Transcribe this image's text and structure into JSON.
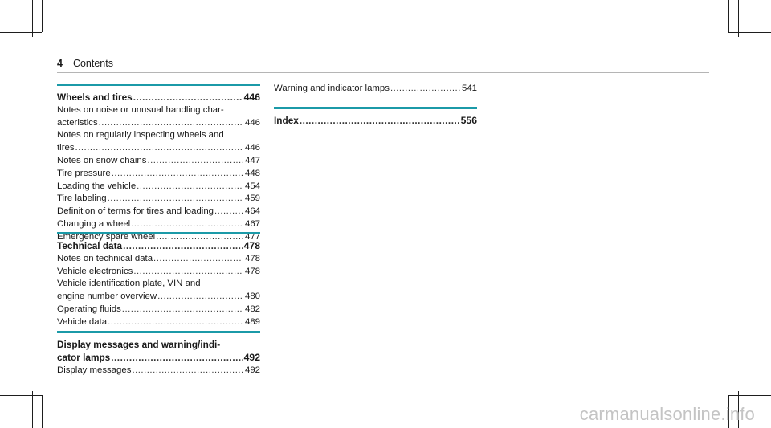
{
  "header": {
    "page_number": "4",
    "title": "Contents"
  },
  "sections": [
    {
      "id": "wheels",
      "heading": {
        "text": "Wheels and tires",
        "page": "446"
      },
      "entries": [
        {
          "lines": [
            "Notes on noise or unusual handling char-"
          ],
          "last": "acteristics",
          "page": "446"
        },
        {
          "lines": [
            "Notes on regularly inspecting wheels and"
          ],
          "last": "tires",
          "page": "446"
        },
        {
          "lines": [],
          "last": "Notes on snow chains",
          "page": "447"
        },
        {
          "lines": [],
          "last": "Tire pressure",
          "page": "448"
        },
        {
          "lines": [],
          "last": "Loading the vehicle",
          "page": "454"
        },
        {
          "lines": [],
          "last": "Tire labeling",
          "page": "459"
        },
        {
          "lines": [],
          "last": "Definition of terms for tires and loading",
          "page": "464"
        },
        {
          "lines": [],
          "last": "Changing a wheel",
          "page": "467"
        },
        {
          "lines": [],
          "last": "Emergency spare wheel",
          "page": "477"
        }
      ]
    },
    {
      "id": "technical",
      "heading": {
        "text": "Technical data",
        "page": "478"
      },
      "entries": [
        {
          "lines": [],
          "last": "Notes on technical data",
          "page": "478"
        },
        {
          "lines": [],
          "last": "Vehicle electronics",
          "page": "478"
        },
        {
          "lines": [
            "Vehicle identification plate, VIN and"
          ],
          "last": "engine number overview",
          "page": "480"
        },
        {
          "lines": [],
          "last": "Operating fluids",
          "page": "482"
        },
        {
          "lines": [],
          "last": "Vehicle data",
          "page": "489"
        }
      ]
    },
    {
      "id": "display",
      "heading_lines": [
        "Display messages and warning/indi-"
      ],
      "heading": {
        "text": "cator lamps",
        "page": "492"
      },
      "entries": [
        {
          "lines": [],
          "last": "Display messages",
          "page": "492"
        }
      ]
    }
  ],
  "right_column": {
    "top_entry": {
      "last": "Warning and indicator lamps",
      "page": "541"
    },
    "index": {
      "text": "Index",
      "page": "556"
    }
  },
  "watermark": "carmanualsonline.info",
  "colors": {
    "accent_bar": "#1b9aa8",
    "watermark": "#c4c4c4",
    "text": "#1a1a1a"
  }
}
